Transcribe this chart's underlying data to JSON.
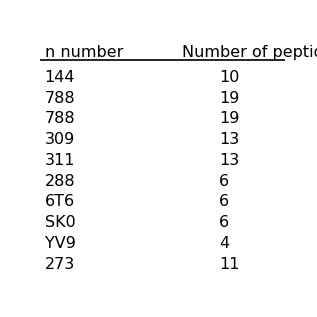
{
  "col1_header": "n number",
  "col2_header": "Number of peptides",
  "rows": [
    [
      "144",
      "10"
    ],
    [
      "788",
      "19"
    ],
    [
      "788",
      "19"
    ],
    [
      "309",
      "13"
    ],
    [
      "311",
      "13"
    ],
    [
      "288",
      "6"
    ],
    [
      "6T6",
      "6"
    ],
    [
      "SK0",
      "6"
    ],
    [
      "YV9",
      "4"
    ],
    [
      "273",
      "11"
    ]
  ],
  "background_color": "#ffffff",
  "text_color": "#000000",
  "font_size": 11.5,
  "header_font_size": 11.5
}
